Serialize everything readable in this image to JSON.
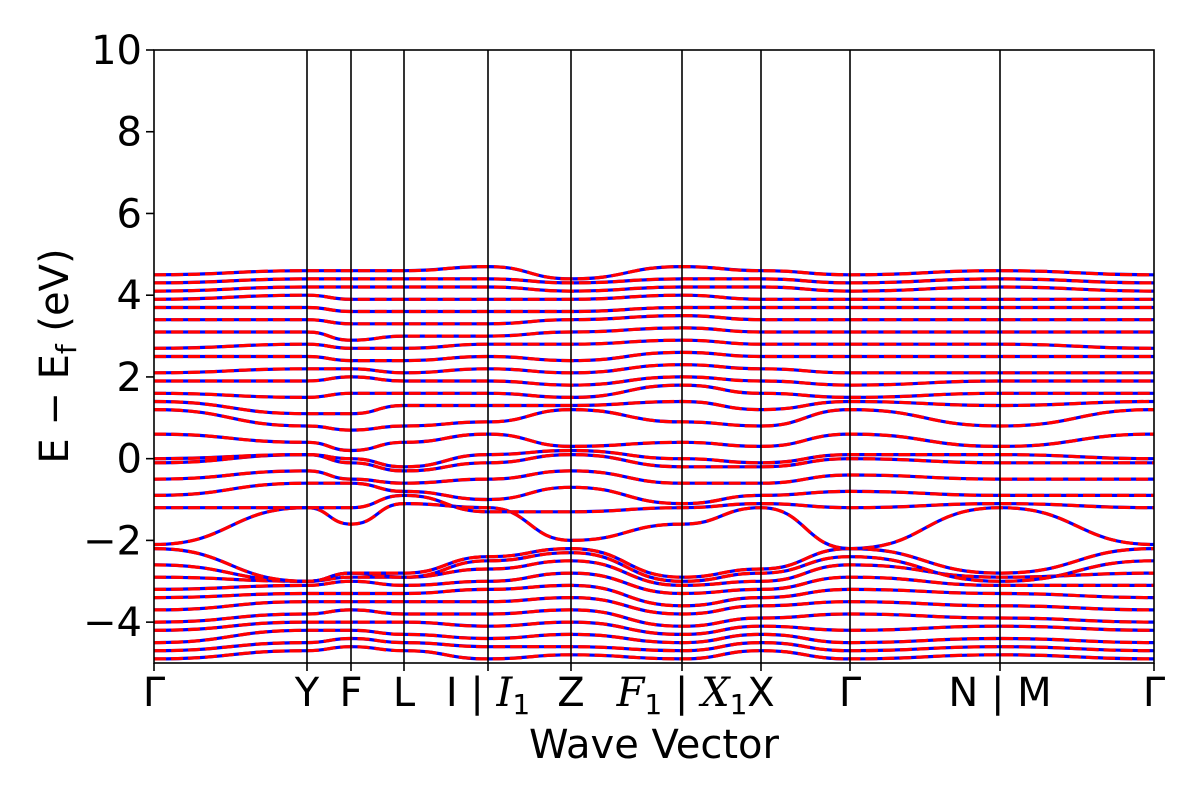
{
  "chart_data": {
    "type": "line",
    "title": "",
    "xlabel": "Wave Vector",
    "ylabel": "E − E_f (eV)",
    "ylabel_parts": {
      "main": "E − E",
      "sub": "f",
      "unit": " (eV)"
    },
    "ylim": [
      -5,
      10
    ],
    "yticks": [
      -4,
      -2,
      0,
      2,
      4,
      6,
      8,
      10
    ],
    "ytick_labels": [
      "−4",
      "−2",
      "0",
      "2",
      "4",
      "6",
      "8",
      "10"
    ],
    "xlim": [
      0,
      1
    ],
    "k_path": [
      {
        "x": 0.0,
        "label": "Γ"
      },
      {
        "x": 0.153,
        "label": "Y"
      },
      {
        "x": 0.197,
        "label": "F"
      },
      {
        "x": 0.25,
        "label": "L"
      },
      {
        "x": 0.334,
        "label": "I | I₁",
        "parts": [
          "I | ",
          "I",
          "1"
        ]
      },
      {
        "x": 0.417,
        "label": "Z"
      },
      {
        "x": 0.528,
        "label": "F₁ | X₁",
        "parts": [
          "F",
          "1",
          " | ",
          "X",
          "1"
        ]
      },
      {
        "x": 0.607,
        "label": "X"
      },
      {
        "x": 0.696,
        "label": "Γ"
      },
      {
        "x": 0.846,
        "label": "N | M"
      },
      {
        "x": 1.0,
        "label": "Γ"
      }
    ],
    "series_style": [
      {
        "role": "spin-up",
        "color": "#0000ff",
        "dash": "solid"
      },
      {
        "role": "spin-down",
        "color": "#ff0000",
        "dash": "dashed"
      }
    ],
    "bands": [
      {
        "anchors": [
          -4.9,
          -4.7,
          -4.6,
          -4.7,
          -4.9,
          -4.8,
          -4.9,
          -4.7,
          -4.9,
          -4.8,
          -4.9
        ]
      },
      {
        "anchors": [
          -4.7,
          -4.5,
          -4.4,
          -4.5,
          -4.6,
          -4.6,
          -4.7,
          -4.5,
          -4.7,
          -4.6,
          -4.7
        ]
      },
      {
        "anchors": [
          -4.5,
          -4.2,
          -4.2,
          -4.3,
          -4.4,
          -4.3,
          -4.5,
          -4.3,
          -4.5,
          -4.4,
          -4.5
        ]
      },
      {
        "anchors": [
          -4.2,
          -4.0,
          -4.0,
          -4.0,
          -4.1,
          -4.0,
          -4.3,
          -4.1,
          -4.2,
          -4.1,
          -4.2
        ]
      },
      {
        "anchors": [
          -4.0,
          -3.8,
          -3.7,
          -3.8,
          -3.8,
          -3.7,
          -4.1,
          -3.9,
          -3.8,
          -3.9,
          -4.0
        ]
      },
      {
        "anchors": [
          -3.7,
          -3.5,
          -3.5,
          -3.5,
          -3.5,
          -3.4,
          -3.8,
          -3.6,
          -3.5,
          -3.6,
          -3.7
        ]
      },
      {
        "anchors": [
          -3.4,
          -3.3,
          -3.3,
          -3.3,
          -3.2,
          -3.1,
          -3.6,
          -3.4,
          -3.2,
          -3.3,
          -3.4
        ]
      },
      {
        "anchors": [
          -3.2,
          -3.1,
          -3.0,
          -3.1,
          -3.0,
          -2.8,
          -3.3,
          -3.2,
          -2.9,
          -3.1,
          -3.1
        ]
      },
      {
        "anchors": [
          -2.9,
          -3.0,
          -2.9,
          -2.9,
          -2.7,
          -2.5,
          -3.1,
          -3.0,
          -2.6,
          -2.9,
          -2.8
        ]
      },
      {
        "anchors": [
          -2.6,
          -3.0,
          -2.8,
          -2.9,
          -2.5,
          -2.3,
          -3.0,
          -2.8,
          -2.4,
          -3.0,
          -2.5
        ]
      },
      {
        "anchors": [
          -2.2,
          -3.0,
          -2.8,
          -2.8,
          -2.4,
          -2.2,
          -2.9,
          -2.7,
          -2.2,
          -2.8,
          -2.2
        ]
      },
      {
        "anchors": [
          -2.1,
          -1.2,
          -1.6,
          -1.1,
          -1.2,
          -2.0,
          -1.6,
          -1.2,
          -2.2,
          -1.2,
          -2.1
        ]
      },
      {
        "anchors": [
          -1.2,
          -1.2,
          -1.2,
          -0.9,
          -1.3,
          -1.3,
          -1.2,
          -1.1,
          -1.2,
          -1.1,
          -1.2
        ]
      },
      {
        "anchors": [
          -0.9,
          -0.6,
          -0.6,
          -0.8,
          -1.0,
          -0.7,
          -1.1,
          -0.9,
          -0.8,
          -0.9,
          -0.9
        ]
      },
      {
        "anchors": [
          -0.5,
          -0.3,
          -0.5,
          -0.6,
          -0.5,
          -0.3,
          -0.6,
          -0.6,
          -0.4,
          -0.5,
          -0.5
        ]
      },
      {
        "anchors": [
          -0.1,
          0.1,
          -0.1,
          -0.3,
          -0.1,
          0.1,
          -0.2,
          -0.2,
          0.0,
          -0.1,
          -0.1
        ]
      },
      {
        "anchors": [
          0.0,
          0.1,
          0.0,
          -0.2,
          0.1,
          0.2,
          0.0,
          -0.1,
          0.1,
          0.1,
          0.0
        ]
      },
      {
        "anchors": [
          0.6,
          0.4,
          0.2,
          0.4,
          0.6,
          0.3,
          0.4,
          0.3,
          0.6,
          0.3,
          0.6
        ]
      },
      {
        "anchors": [
          1.2,
          0.8,
          0.7,
          0.8,
          0.9,
          1.2,
          0.9,
          0.8,
          1.2,
          0.8,
          1.2
        ]
      },
      {
        "anchors": [
          1.4,
          1.1,
          1.1,
          1.3,
          1.3,
          1.3,
          1.4,
          1.2,
          1.4,
          1.3,
          1.4
        ]
      },
      {
        "anchors": [
          1.6,
          1.5,
          1.6,
          1.6,
          1.6,
          1.5,
          1.8,
          1.6,
          1.5,
          1.6,
          1.6
        ]
      },
      {
        "anchors": [
          1.9,
          1.9,
          2.0,
          1.9,
          1.9,
          1.8,
          2.0,
          1.9,
          1.8,
          1.9,
          1.9
        ]
      },
      {
        "anchors": [
          2.1,
          2.2,
          2.2,
          2.1,
          2.2,
          2.1,
          2.3,
          2.2,
          2.1,
          2.1,
          2.1
        ]
      },
      {
        "anchors": [
          2.5,
          2.5,
          2.4,
          2.4,
          2.5,
          2.4,
          2.6,
          2.5,
          2.5,
          2.5,
          2.5
        ]
      },
      {
        "anchors": [
          2.7,
          2.8,
          2.7,
          2.7,
          2.8,
          2.8,
          2.9,
          2.8,
          2.8,
          2.8,
          2.7
        ]
      },
      {
        "anchors": [
          3.1,
          3.1,
          2.9,
          3.0,
          3.0,
          3.1,
          3.2,
          3.1,
          3.1,
          3.1,
          3.1
        ]
      },
      {
        "anchors": [
          3.4,
          3.4,
          3.3,
          3.3,
          3.3,
          3.4,
          3.5,
          3.4,
          3.4,
          3.4,
          3.4
        ]
      },
      {
        "anchors": [
          3.7,
          3.7,
          3.6,
          3.6,
          3.6,
          3.6,
          3.7,
          3.7,
          3.7,
          3.7,
          3.7
        ]
      },
      {
        "anchors": [
          3.9,
          4.0,
          3.9,
          3.9,
          3.9,
          3.9,
          4.0,
          3.9,
          3.9,
          3.9,
          3.9
        ]
      },
      {
        "anchors": [
          4.1,
          4.2,
          4.2,
          4.2,
          4.2,
          4.1,
          4.2,
          4.2,
          4.1,
          4.2,
          4.1
        ]
      },
      {
        "anchors": [
          4.3,
          4.4,
          4.4,
          4.4,
          4.4,
          4.3,
          4.4,
          4.4,
          4.3,
          4.4,
          4.3
        ]
      },
      {
        "anchors": [
          4.5,
          4.6,
          4.6,
          4.6,
          4.7,
          4.4,
          4.7,
          4.6,
          4.5,
          4.6,
          4.5
        ]
      }
    ]
  }
}
